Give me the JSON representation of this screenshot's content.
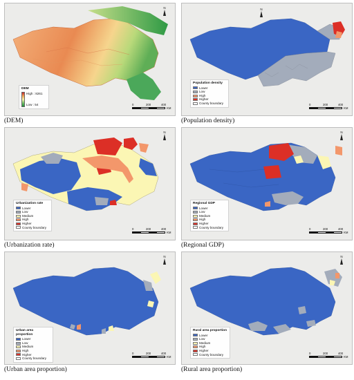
{
  "panels": [
    {
      "caption": "(DEM)",
      "legend": {
        "title": "DEM",
        "high": "High : 8261",
        "low": "Low : 54"
      }
    },
    {
      "caption": "(Population density)",
      "legend": {
        "title": "Population density",
        "items": [
          "Lower",
          "Low",
          "High",
          "Higher"
        ],
        "boundary": "County boundary"
      }
    },
    {
      "caption": "(Urbanization rate)",
      "legend": {
        "title": "Urbanization rate",
        "items": [
          "Lower",
          "Low",
          "Medium",
          "High",
          "Higher"
        ],
        "boundary": "County boundary"
      }
    },
    {
      "caption": "(Regional GDP)",
      "legend": {
        "title": "Regional GDP",
        "items": [
          "Lower",
          "Low",
          "Medium",
          "High",
          "Higher"
        ],
        "boundary": "County boundary"
      }
    },
    {
      "caption": "(Urban area proportion)",
      "legend": {
        "title": "Urban area proportion",
        "items": [
          "Lower",
          "Low",
          "Medium",
          "High",
          "Higher"
        ],
        "boundary": "County boundary"
      }
    },
    {
      "caption": "(Rural area proportion)",
      "legend": {
        "title": "Rural area proportion",
        "items": [
          "Lower",
          "Low",
          "Medium",
          "High",
          "Higher"
        ],
        "boundary": "County boundary"
      }
    }
  ],
  "north_label": "N",
  "scale": {
    "ticks": [
      "0",
      "200",
      "400"
    ],
    "unit": "KM"
  },
  "colors": {
    "lower": "#3a66c4",
    "low": "#a3acbb",
    "medium": "#fbf6b4",
    "high": "#f3976b",
    "higher": "#dc2f26",
    "background_terrain": "#eeeeea"
  }
}
